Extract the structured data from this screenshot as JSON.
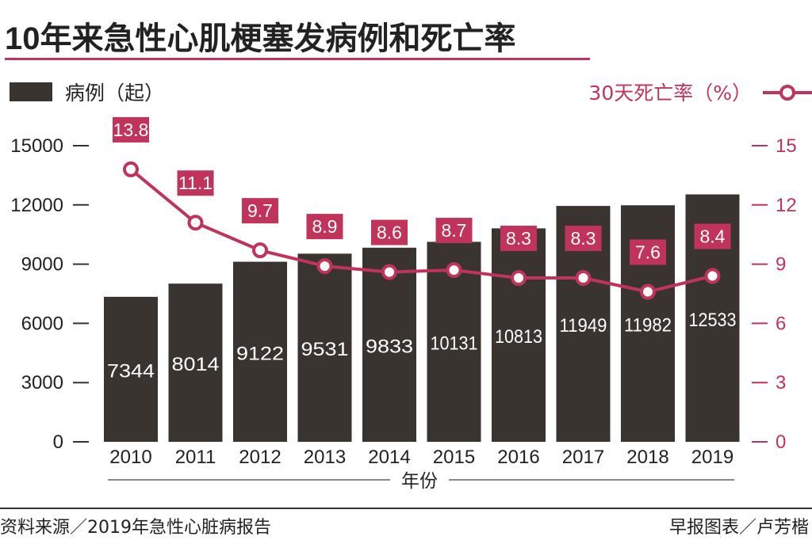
{
  "colors": {
    "bar": "#3a3430",
    "line": "#c0335a",
    "axis": "#333333",
    "text": "#222222",
    "bar_label": "#ffffff",
    "rate_label_bg": "#c0335a"
  },
  "chart_data": {
    "type": "bar",
    "title": "10年来急性心肌梗塞发病例和死亡率",
    "xlabel": "年份",
    "categories": [
      "2010",
      "2011",
      "2012",
      "2013",
      "2014",
      "2015",
      "2016",
      "2017",
      "2018",
      "2019"
    ],
    "series": [
      {
        "name": "病例（起）",
        "type": "bar",
        "axis": "left",
        "values": [
          7344,
          8014,
          9122,
          9531,
          9833,
          10131,
          10813,
          11949,
          11982,
          12533
        ]
      },
      {
        "name": "30天死亡率（%）",
        "type": "line",
        "axis": "right",
        "values": [
          13.8,
          11.1,
          9.7,
          8.9,
          8.6,
          8.7,
          8.3,
          8.3,
          7.6,
          8.4
        ]
      }
    ],
    "left_axis": {
      "ylim": [
        0,
        15000
      ],
      "ticks": [
        "15000",
        "12000",
        "9000",
        "6000",
        "3000",
        "0"
      ]
    },
    "right_axis": {
      "ylim": [
        0,
        15
      ],
      "ticks": [
        "15",
        "12",
        "9",
        "6",
        "3",
        "0"
      ]
    },
    "legend_left": "病例（起）",
    "legend_right": "30天死亡率（%）",
    "source": "资料来源／2019年急性心脏病报告",
    "credit": "早报图表／卢芳楷"
  }
}
